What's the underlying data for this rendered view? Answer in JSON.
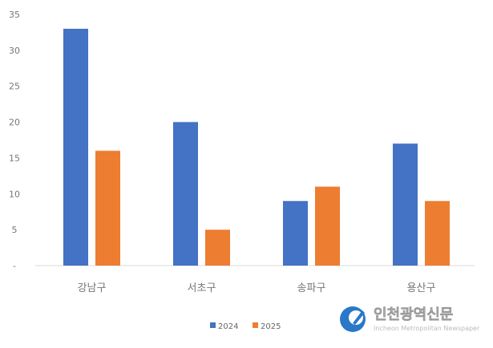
{
  "chart_data": {
    "type": "bar",
    "categories": [
      "강남구",
      "서초구",
      "송파구",
      "용산구"
    ],
    "series": [
      {
        "name": "2024",
        "color": "#4472c4",
        "values": [
          33,
          20,
          9,
          17
        ]
      },
      {
        "name": "2025",
        "color": "#ed7d31",
        "values": [
          16,
          5,
          11,
          9
        ]
      }
    ],
    "title": "",
    "xlabel": "",
    "ylabel": "",
    "ylim": [
      0,
      35
    ],
    "yticks": [
      "-",
      "5",
      "10",
      "15",
      "20",
      "25",
      "30",
      "35"
    ],
    "grid": false,
    "legend": "bottom"
  },
  "watermark": {
    "name": "인천광역신문",
    "subtitle": "Incheon Metropolitan Newspaper"
  }
}
